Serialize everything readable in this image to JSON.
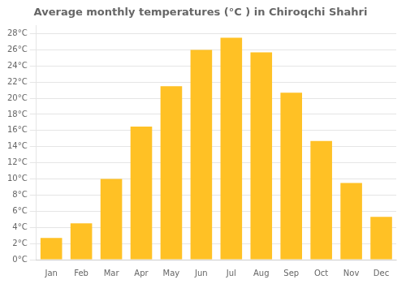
{
  "chart_data": {
    "type": "bar",
    "title": "Average monthly temperatures (°C ) in Chiroqchi Shahri",
    "categories": [
      "Jan",
      "Feb",
      "Mar",
      "Apr",
      "May",
      "Jun",
      "Jul",
      "Aug",
      "Sep",
      "Oct",
      "Nov",
      "Dec"
    ],
    "values": [
      2.7,
      4.5,
      10.0,
      16.5,
      21.5,
      26.0,
      27.5,
      25.7,
      20.7,
      14.7,
      9.5,
      5.3
    ],
    "color": "#FFC125",
    "ylim": [
      0,
      29
    ],
    "yticks": [
      {
        "value": 0,
        "label": "0°C"
      },
      {
        "value": 2,
        "label": "2°C"
      },
      {
        "value": 4,
        "label": "4°C"
      },
      {
        "value": 6,
        "label": "6°C"
      },
      {
        "value": 8,
        "label": "8°C"
      },
      {
        "value": 10,
        "label": "10°C"
      },
      {
        "value": 12,
        "label": "12°C"
      },
      {
        "value": 14,
        "label": "14°C"
      },
      {
        "value": 16,
        "label": "16°C"
      },
      {
        "value": 18,
        "label": "18°C"
      },
      {
        "value": 20,
        "label": "20°C"
      },
      {
        "value": 22,
        "label": "22°C"
      },
      {
        "value": 24,
        "label": "24°C"
      },
      {
        "value": 26,
        "label": "26°C"
      },
      {
        "value": 28,
        "label": "28°C"
      }
    ],
    "grid": true
  }
}
